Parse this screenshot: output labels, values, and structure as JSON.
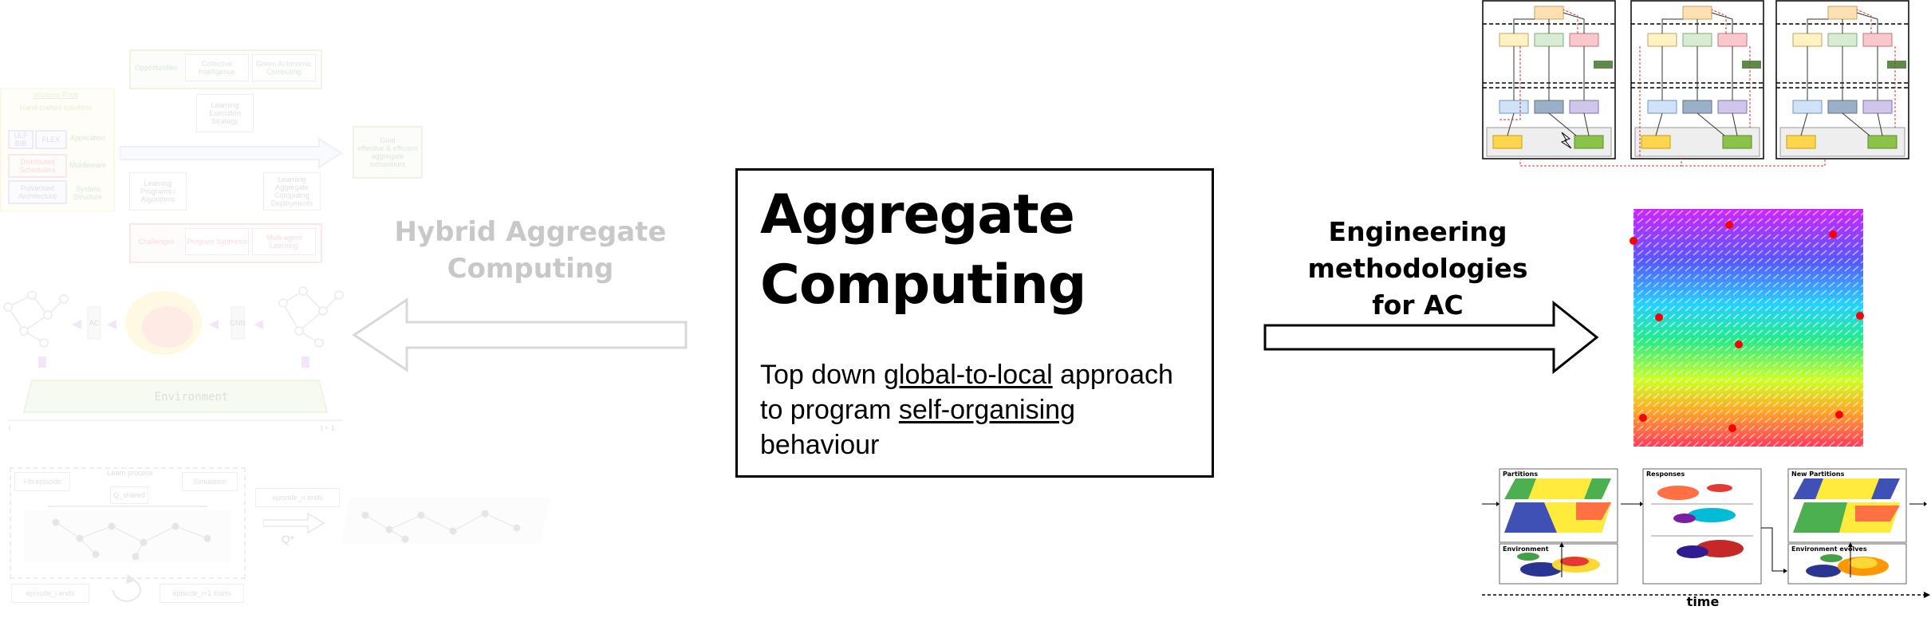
{
  "hybrid": {
    "title_line1": "Hybrid Aggregate",
    "title_line2": "Computing",
    "diagram_labels": {
      "working_point": "Working Point",
      "hand_crafted": "Hand-crafted solutions",
      "ulf": "ULF BIB",
      "flex": "FLEX",
      "application": "Application",
      "distributed_schedulers": "Distributed Schedulers",
      "middleware": "Middleware",
      "pulverised": "Pulverised Architecture",
      "system_structure": "System Structure",
      "opportunities": "Opportunities",
      "collective_intelligence": "Collective Intelligence",
      "green_autonomic": "Green Autonomic Computing",
      "learning_execution": "Learning Execution Strategy",
      "learning_programs": "Learning Programs / Algorithms",
      "learning_aggregate": "Learning Aggregate Computing Deployments",
      "goal": "Goal",
      "goal_desc": "effective & efficient aggregate behaviours",
      "challenges": "Challenges",
      "program_synthesis": "Program Synthesis",
      "multiagent": "Multi-agent Learning",
      "ac": "AC",
      "gnn": "GNN",
      "environment": "Environment",
      "t": "t",
      "t1": "t + 1",
      "ith_episode": "i-th episode",
      "learn_process": "Learn process",
      "q_shared": "Q_shared",
      "simulation": "Simulation",
      "episode_ends": "episode_i ends",
      "episode_starts": "episode_i+1 starts",
      "episode_n_ends": "episode_n ends",
      "q_star": "Q*"
    }
  },
  "main": {
    "title_line1": "Aggregate",
    "title_line2": "Computing",
    "desc_part1": "Top down ",
    "desc_link1": "global-to-local",
    "desc_part2": " approach",
    "desc_part3": "to program ",
    "desc_link2": "self-organising",
    "desc_part4": "behaviour"
  },
  "engineering": {
    "title_line1": "Engineering methodologies",
    "title_line2": "for AC"
  },
  "timeline": {
    "panels": [
      {
        "label": "Partitions",
        "sub": "Environment"
      },
      {
        "label": "Responses",
        "sub": ""
      },
      {
        "label": "New Partitions",
        "sub": "Environment evolves"
      }
    ],
    "time_label": "time"
  }
}
